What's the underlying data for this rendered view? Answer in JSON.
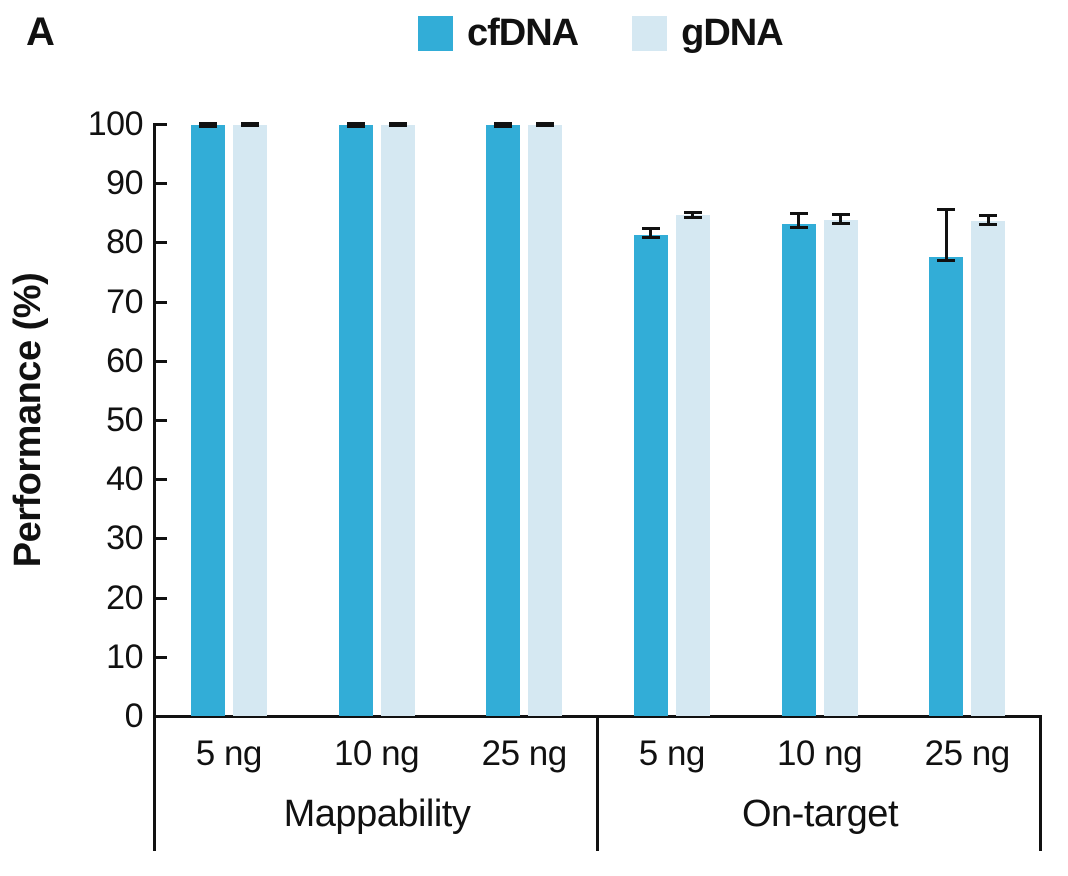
{
  "panel_label": "A",
  "legend": [
    {
      "label": "cfDNA",
      "color": "#32ADD7"
    },
    {
      "label": "gDNA",
      "color": "#D5E8F2"
    }
  ],
  "colors": {
    "cfDNA": "#32ADD7",
    "gDNA": "#D5E8F2",
    "axis": "#111111",
    "error_bar": "#111111"
  },
  "chart_data": {
    "type": "bar",
    "title": "",
    "ylabel": "Performance (%)",
    "xlabel": "",
    "ylim": [
      0,
      100
    ],
    "yticks": [
      0,
      10,
      20,
      30,
      40,
      50,
      60,
      70,
      80,
      90,
      100
    ],
    "grid": false,
    "legend_position": "top-center",
    "group_labels": [
      "Mappability",
      "On-target"
    ],
    "categories": [
      "5 ng",
      "10 ng",
      "25 ng",
      "5 ng",
      "10 ng",
      "25 ng"
    ],
    "series": [
      {
        "name": "cfDNA",
        "color": "#32ADD7",
        "values": [
          99.9,
          99.9,
          99.9,
          81.2,
          83.1,
          77.5
        ],
        "err_up": [
          0.3,
          0.3,
          0.3,
          1.2,
          1.9,
          8.2
        ],
        "err_down": [
          0.4,
          0.4,
          0.4,
          0.5,
          0.7,
          0.7
        ]
      },
      {
        "name": "gDNA",
        "color": "#D5E8F2",
        "values": [
          99.9,
          99.9,
          99.9,
          84.6,
          83.8,
          83.6
        ],
        "err_up": [
          0.2,
          0.2,
          0.2,
          0.5,
          1.0,
          1.1
        ],
        "err_down": [
          0.3,
          0.3,
          0.3,
          0.4,
          0.7,
          0.6
        ]
      }
    ]
  }
}
